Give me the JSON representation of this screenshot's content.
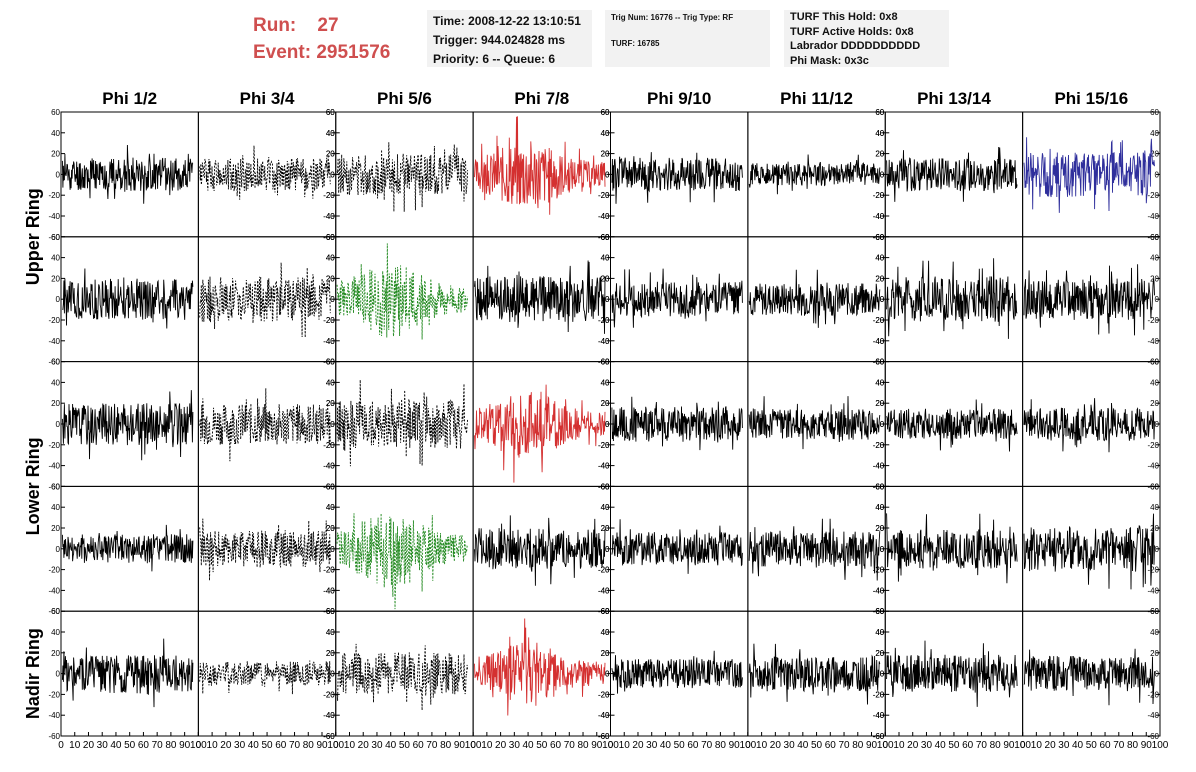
{
  "run": {
    "run_label": "Run:",
    "run_value": "27",
    "event_label": "Event:",
    "event_value": "2951576"
  },
  "time_box": {
    "time": "Time: 2008-12-22 13:10:51",
    "trigger": "Trigger: 944.024828 ms",
    "priority": "Priority: 6 -- Queue: 6"
  },
  "trig_box": {
    "trig": "Trig Num: 16776 -- Trig Type: RF",
    "turf": "TURF: 16785"
  },
  "turf_box": {
    "hold": "TURF This Hold: 0x8",
    "active": "TURF Active Holds: 0x8",
    "labrador": "Labrador DDDDDDDDDD",
    "phimask": "Phi Mask: 0x3c"
  },
  "colors": {
    "title_red": "#cf4f4f",
    "red": "#d43030",
    "green": "#21891f",
    "blue": "#2f2f9c",
    "black": "#000000"
  },
  "chart_data": {
    "type": "line",
    "columns": [
      "Phi 1/2",
      "Phi 3/4",
      "Phi 5/6",
      "Phi 7/8",
      "Phi 9/10",
      "Phi 11/12",
      "Phi 13/14",
      "Phi 15/16"
    ],
    "ring_labels": [
      "Upper Ring",
      "Lower Ring",
      "Nadir Ring"
    ],
    "y_ticks": [
      60,
      40,
      20,
      0,
      -20,
      -40,
      -60
    ],
    "x_ticks": [
      0,
      10,
      20,
      30,
      40,
      50,
      60,
      70,
      80,
      90,
      100
    ],
    "ylim": [
      -60,
      60
    ],
    "xlim": [
      0,
      100
    ],
    "n_samples": 256,
    "panels": [
      [
        {
          "color": "black",
          "dashed": false,
          "amp": 16,
          "seed": 11
        },
        {
          "color": "black",
          "dashed": true,
          "amp": 16,
          "seed": 12
        },
        {
          "color": "black",
          "dashed": true,
          "amp": 20,
          "seed": 13
        },
        {
          "color": "red",
          "dashed": false,
          "amp": 26,
          "seed": 14,
          "envelope": true
        },
        {
          "color": "black",
          "dashed": false,
          "amp": 16,
          "seed": 15
        },
        {
          "color": "black",
          "dashed": false,
          "amp": 11,
          "seed": 16
        },
        {
          "color": "black",
          "dashed": false,
          "amp": 16,
          "seed": 17
        },
        {
          "color": "blue",
          "dashed": false,
          "amp": 22,
          "seed": 18
        }
      ],
      [
        {
          "color": "black",
          "dashed": false,
          "amp": 20,
          "seed": 21
        },
        {
          "color": "black",
          "dashed": true,
          "amp": 22,
          "seed": 22
        },
        {
          "color": "green",
          "dashed": true,
          "amp": 28,
          "seed": 23,
          "envelope": true
        },
        {
          "color": "black",
          "dashed": false,
          "amp": 22,
          "seed": 24
        },
        {
          "color": "black",
          "dashed": false,
          "amp": 17,
          "seed": 25
        },
        {
          "color": "black",
          "dashed": false,
          "amp": 16,
          "seed": 26
        },
        {
          "color": "black",
          "dashed": false,
          "amp": 22,
          "seed": 27
        },
        {
          "color": "black",
          "dashed": false,
          "amp": 20,
          "seed": 28
        }
      ],
      [
        {
          "color": "black",
          "dashed": false,
          "amp": 20,
          "seed": 31
        },
        {
          "color": "black",
          "dashed": true,
          "amp": 20,
          "seed": 32
        },
        {
          "color": "black",
          "dashed": true,
          "amp": 24,
          "seed": 33
        },
        {
          "color": "red",
          "dashed": false,
          "amp": 26,
          "seed": 34,
          "envelope": true
        },
        {
          "color": "black",
          "dashed": false,
          "amp": 17,
          "seed": 35
        },
        {
          "color": "black",
          "dashed": false,
          "amp": 15,
          "seed": 36
        },
        {
          "color": "black",
          "dashed": false,
          "amp": 15,
          "seed": 37
        },
        {
          "color": "black",
          "dashed": false,
          "amp": 16,
          "seed": 38
        }
      ],
      [
        {
          "color": "black",
          "dashed": false,
          "amp": 14,
          "seed": 41
        },
        {
          "color": "black",
          "dashed": true,
          "amp": 18,
          "seed": 42
        },
        {
          "color": "green",
          "dashed": true,
          "amp": 28,
          "seed": 43,
          "envelope": true
        },
        {
          "color": "black",
          "dashed": false,
          "amp": 20,
          "seed": 44
        },
        {
          "color": "black",
          "dashed": false,
          "amp": 16,
          "seed": 45
        },
        {
          "color": "black",
          "dashed": false,
          "amp": 17,
          "seed": 46
        },
        {
          "color": "black",
          "dashed": false,
          "amp": 19,
          "seed": 47
        },
        {
          "color": "black",
          "dashed": false,
          "amp": 22,
          "seed": 48
        }
      ],
      [
        {
          "color": "black",
          "dashed": false,
          "amp": 19,
          "seed": 51
        },
        {
          "color": "black",
          "dashed": true,
          "amp": 12,
          "seed": 52
        },
        {
          "color": "black",
          "dashed": true,
          "amp": 20,
          "seed": 53
        },
        {
          "color": "red",
          "dashed": false,
          "amp": 24,
          "seed": 54,
          "envelope": true
        },
        {
          "color": "black",
          "dashed": false,
          "amp": 14,
          "seed": 55
        },
        {
          "color": "black",
          "dashed": false,
          "amp": 17,
          "seed": 56
        },
        {
          "color": "black",
          "dashed": false,
          "amp": 18,
          "seed": 57
        },
        {
          "color": "black",
          "dashed": false,
          "amp": 17,
          "seed": 58
        }
      ]
    ]
  }
}
